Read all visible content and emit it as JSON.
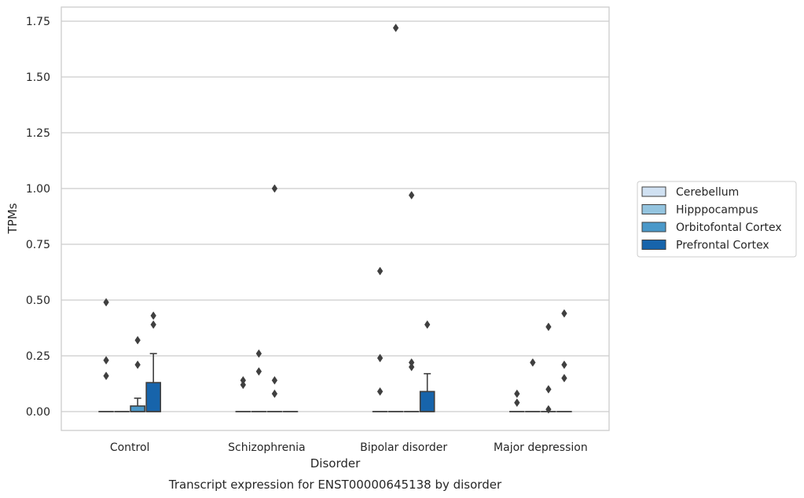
{
  "caption": "Transcript expression for ENST00000645138 by disorder",
  "chart_data": {
    "type": "box",
    "xlabel": "Disorder",
    "ylabel": "TPMs",
    "ylim": [
      -0.085,
      1.81
    ],
    "yticks": [
      0.0,
      0.25,
      0.5,
      0.75,
      1.0,
      1.25,
      1.5,
      1.75
    ],
    "ytick_labels": [
      "0.00",
      "0.25",
      "0.50",
      "0.75",
      "1.00",
      "1.25",
      "1.50",
      "1.75"
    ],
    "grid": true,
    "legend_position": "right",
    "categories": [
      "Control",
      "Schizophrenia",
      "Bipolar disorder",
      "Major depression"
    ],
    "series": [
      {
        "name": "Cerebellum",
        "color": "#d0e1f2",
        "boxes": [
          {
            "q1": 0,
            "median": 0,
            "q3": 0,
            "whisker_low": 0,
            "whisker_high": 0,
            "outliers": [
              0.16,
              0.23,
              0.49
            ]
          },
          {
            "q1": 0,
            "median": 0,
            "q3": 0,
            "whisker_low": 0,
            "whisker_high": 0,
            "outliers": [
              0.12,
              0.14
            ]
          },
          {
            "q1": 0,
            "median": 0,
            "q3": 0,
            "whisker_low": 0,
            "whisker_high": 0,
            "outliers": [
              0.09,
              0.24,
              0.63
            ]
          },
          {
            "q1": 0,
            "median": 0,
            "q3": 0,
            "whisker_low": 0,
            "whisker_high": 0,
            "outliers": [
              0.04,
              0.08
            ]
          }
        ]
      },
      {
        "name": "Hipppocampus",
        "color": "#94c4df",
        "boxes": [
          {
            "q1": 0,
            "median": 0,
            "q3": 0,
            "whisker_low": 0,
            "whisker_high": 0,
            "outliers": []
          },
          {
            "q1": 0,
            "median": 0,
            "q3": 0,
            "whisker_low": 0,
            "whisker_high": 0,
            "outliers": [
              0.18,
              0.26
            ]
          },
          {
            "q1": 0,
            "median": 0,
            "q3": 0,
            "whisker_low": 0,
            "whisker_high": 0,
            "outliers": [
              1.72
            ]
          },
          {
            "q1": 0,
            "median": 0,
            "q3": 0,
            "whisker_low": 0,
            "whisker_high": 0,
            "outliers": [
              0.22
            ]
          }
        ]
      },
      {
        "name": "Orbitofontal Cortex",
        "color": "#4a98c9",
        "boxes": [
          {
            "q1": 0,
            "median": 0,
            "q3": 0.025,
            "whisker_low": 0,
            "whisker_high": 0.06,
            "outliers": [
              0.21,
              0.32
            ]
          },
          {
            "q1": 0,
            "median": 0,
            "q3": 0,
            "whisker_low": 0,
            "whisker_high": 0,
            "outliers": [
              0.08,
              0.14,
              1.0
            ]
          },
          {
            "q1": 0,
            "median": 0,
            "q3": 0,
            "whisker_low": 0,
            "whisker_high": 0,
            "outliers": [
              0.2,
              0.22,
              0.97
            ]
          },
          {
            "q1": 0,
            "median": 0,
            "q3": 0,
            "whisker_low": 0,
            "whisker_high": 0,
            "outliers": [
              0.01,
              0.1,
              0.38
            ]
          }
        ]
      },
      {
        "name": "Prefrontal Cortex",
        "color": "#1764ab",
        "boxes": [
          {
            "q1": 0,
            "median": 0,
            "q3": 0.13,
            "whisker_low": 0,
            "whisker_high": 0.26,
            "outliers": [
              0.39,
              0.43
            ]
          },
          {
            "q1": 0,
            "median": 0,
            "q3": 0,
            "whisker_low": 0,
            "whisker_high": 0,
            "outliers": []
          },
          {
            "q1": 0,
            "median": 0,
            "q3": 0.09,
            "whisker_low": 0,
            "whisker_high": 0.17,
            "outliers": [
              0.39
            ]
          },
          {
            "q1": 0,
            "median": 0,
            "q3": 0,
            "whisker_low": 0,
            "whisker_high": 0,
            "outliers": [
              0.15,
              0.21,
              0.44
            ]
          }
        ]
      }
    ]
  }
}
